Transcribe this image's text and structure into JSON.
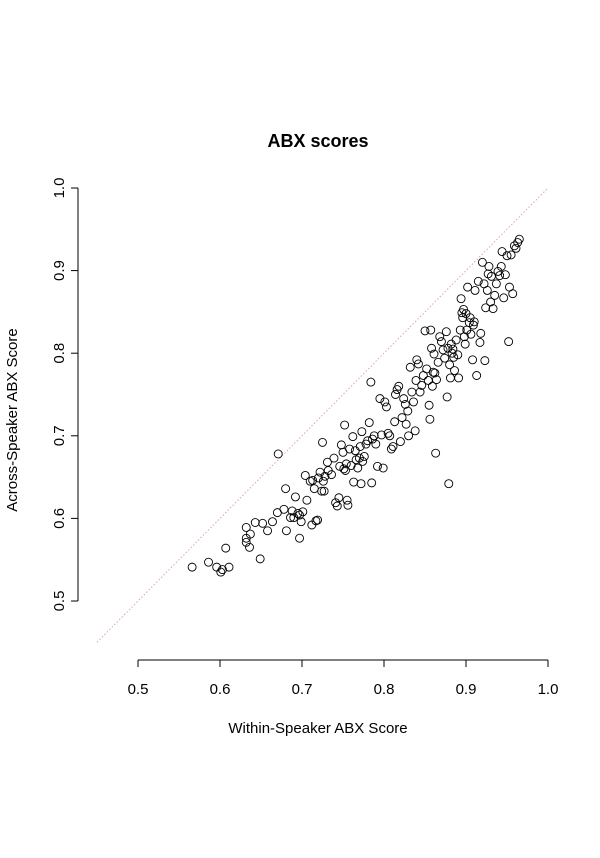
{
  "chart_data": {
    "type": "scatter",
    "title": "ABX scores",
    "xlabel": "Within-Speaker ABX Score",
    "ylabel": "Across-Speaker ABX Score",
    "xlim": [
      0.45,
      1.0
    ],
    "ylim": [
      0.45,
      1.0
    ],
    "x_ticks": [
      "0.5",
      "0.6",
      "0.7",
      "0.8",
      "0.9",
      "1.0"
    ],
    "y_ticks": [
      "0.5",
      "0.6",
      "0.7",
      "0.8",
      "0.9",
      "1.0"
    ],
    "reference_line": {
      "from": [
        0.45,
        0.45
      ],
      "to": [
        1.0,
        1.0
      ],
      "color": "#e8a0a8",
      "style": "dotted"
    },
    "marker_color": "#000000",
    "grid": false,
    "points": [
      [
        0.566,
        0.541
      ],
      [
        0.586,
        0.547
      ],
      [
        0.596,
        0.541
      ],
      [
        0.601,
        0.535
      ],
      [
        0.603,
        0.538
      ],
      [
        0.607,
        0.564
      ],
      [
        0.611,
        0.541
      ],
      [
        0.632,
        0.589
      ],
      [
        0.632,
        0.576
      ],
      [
        0.632,
        0.571
      ],
      [
        0.636,
        0.565
      ],
      [
        0.637,
        0.581
      ],
      [
        0.643,
        0.595
      ],
      [
        0.649,
        0.551
      ],
      [
        0.652,
        0.594
      ],
      [
        0.658,
        0.585
      ],
      [
        0.664,
        0.596
      ],
      [
        0.671,
        0.678
      ],
      [
        0.67,
        0.607
      ],
      [
        0.678,
        0.611
      ],
      [
        0.68,
        0.636
      ],
      [
        0.681,
        0.585
      ],
      [
        0.686,
        0.601
      ],
      [
        0.688,
        0.609
      ],
      [
        0.69,
        0.601
      ],
      [
        0.692,
        0.626
      ],
      [
        0.695,
        0.606
      ],
      [
        0.697,
        0.604
      ],
      [
        0.697,
        0.576
      ],
      [
        0.699,
        0.596
      ],
      [
        0.701,
        0.608
      ],
      [
        0.704,
        0.652
      ],
      [
        0.706,
        0.622
      ],
      [
        0.71,
        0.645
      ],
      [
        0.712,
        0.592
      ],
      [
        0.713,
        0.646
      ],
      [
        0.715,
        0.636
      ],
      [
        0.717,
        0.597
      ],
      [
        0.719,
        0.598
      ],
      [
        0.72,
        0.649
      ],
      [
        0.722,
        0.656
      ],
      [
        0.724,
        0.633
      ],
      [
        0.725,
        0.692
      ],
      [
        0.726,
        0.645
      ],
      [
        0.727,
        0.633
      ],
      [
        0.728,
        0.651
      ],
      [
        0.731,
        0.668
      ],
      [
        0.732,
        0.658
      ],
      [
        0.736,
        0.653
      ],
      [
        0.739,
        0.673
      ],
      [
        0.741,
        0.619
      ],
      [
        0.743,
        0.615
      ],
      [
        0.745,
        0.625
      ],
      [
        0.746,
        0.663
      ],
      [
        0.748,
        0.689
      ],
      [
        0.75,
        0.68
      ],
      [
        0.751,
        0.66
      ],
      [
        0.752,
        0.713
      ],
      [
        0.753,
        0.658
      ],
      [
        0.754,
        0.666
      ],
      [
        0.755,
        0.622
      ],
      [
        0.756,
        0.616
      ],
      [
        0.758,
        0.684
      ],
      [
        0.76,
        0.664
      ],
      [
        0.762,
        0.699
      ],
      [
        0.763,
        0.644
      ],
      [
        0.765,
        0.682
      ],
      [
        0.766,
        0.671
      ],
      [
        0.768,
        0.661
      ],
      [
        0.77,
        0.673
      ],
      [
        0.771,
        0.687
      ],
      [
        0.772,
        0.642
      ],
      [
        0.773,
        0.705
      ],
      [
        0.774,
        0.669
      ],
      [
        0.776,
        0.675
      ],
      [
        0.778,
        0.69
      ],
      [
        0.78,
        0.694
      ],
      [
        0.782,
        0.716
      ],
      [
        0.784,
        0.765
      ],
      [
        0.785,
        0.643
      ],
      [
        0.786,
        0.696
      ],
      [
        0.788,
        0.7
      ],
      [
        0.79,
        0.69
      ],
      [
        0.792,
        0.663
      ],
      [
        0.795,
        0.745
      ],
      [
        0.797,
        0.701
      ],
      [
        0.799,
        0.661
      ],
      [
        0.801,
        0.741
      ],
      [
        0.803,
        0.735
      ],
      [
        0.805,
        0.703
      ],
      [
        0.807,
        0.7
      ],
      [
        0.809,
        0.684
      ],
      [
        0.811,
        0.687
      ],
      [
        0.813,
        0.717
      ],
      [
        0.814,
        0.75
      ],
      [
        0.816,
        0.756
      ],
      [
        0.818,
        0.76
      ],
      [
        0.82,
        0.693
      ],
      [
        0.822,
        0.722
      ],
      [
        0.824,
        0.745
      ],
      [
        0.826,
        0.738
      ],
      [
        0.827,
        0.714
      ],
      [
        0.829,
        0.73
      ],
      [
        0.83,
        0.7
      ],
      [
        0.832,
        0.783
      ],
      [
        0.834,
        0.753
      ],
      [
        0.836,
        0.741
      ],
      [
        0.838,
        0.706
      ],
      [
        0.839,
        0.767
      ],
      [
        0.84,
        0.792
      ],
      [
        0.842,
        0.787
      ],
      [
        0.844,
        0.753
      ],
      [
        0.846,
        0.761
      ],
      [
        0.848,
        0.773
      ],
      [
        0.85,
        0.827
      ],
      [
        0.852,
        0.781
      ],
      [
        0.854,
        0.767
      ],
      [
        0.855,
        0.737
      ],
      [
        0.856,
        0.72
      ],
      [
        0.857,
        0.828
      ],
      [
        0.858,
        0.806
      ],
      [
        0.859,
        0.76
      ],
      [
        0.86,
        0.777
      ],
      [
        0.861,
        0.799
      ],
      [
        0.862,
        0.776
      ],
      [
        0.863,
        0.679
      ],
      [
        0.864,
        0.768
      ],
      [
        0.866,
        0.789
      ],
      [
        0.868,
        0.82
      ],
      [
        0.87,
        0.814
      ],
      [
        0.872,
        0.804
      ],
      [
        0.874,
        0.794
      ],
      [
        0.876,
        0.826
      ],
      [
        0.877,
        0.747
      ],
      [
        0.878,
        0.806
      ],
      [
        0.879,
        0.642
      ],
      [
        0.88,
        0.786
      ],
      [
        0.881,
        0.77
      ],
      [
        0.882,
        0.811
      ],
      [
        0.883,
        0.8
      ],
      [
        0.884,
        0.805
      ],
      [
        0.885,
        0.795
      ],
      [
        0.886,
        0.779
      ],
      [
        0.888,
        0.816
      ],
      [
        0.89,
        0.798
      ],
      [
        0.891,
        0.77
      ],
      [
        0.893,
        0.828
      ],
      [
        0.894,
        0.866
      ],
      [
        0.895,
        0.849
      ],
      [
        0.896,
        0.843
      ],
      [
        0.897,
        0.853
      ],
      [
        0.898,
        0.82
      ],
      [
        0.899,
        0.811
      ],
      [
        0.9,
        0.848
      ],
      [
        0.901,
        0.828
      ],
      [
        0.902,
        0.88
      ],
      [
        0.904,
        0.837
      ],
      [
        0.905,
        0.843
      ],
      [
        0.906,
        0.823
      ],
      [
        0.908,
        0.792
      ],
      [
        0.909,
        0.834
      ],
      [
        0.91,
        0.838
      ],
      [
        0.911,
        0.876
      ],
      [
        0.913,
        0.773
      ],
      [
        0.915,
        0.887
      ],
      [
        0.917,
        0.813
      ],
      [
        0.918,
        0.824
      ],
      [
        0.92,
        0.91
      ],
      [
        0.922,
        0.884
      ],
      [
        0.923,
        0.791
      ],
      [
        0.924,
        0.855
      ],
      [
        0.926,
        0.876
      ],
      [
        0.927,
        0.896
      ],
      [
        0.928,
        0.905
      ],
      [
        0.93,
        0.862
      ],
      [
        0.931,
        0.893
      ],
      [
        0.933,
        0.854
      ],
      [
        0.935,
        0.87
      ],
      [
        0.937,
        0.884
      ],
      [
        0.939,
        0.899
      ],
      [
        0.941,
        0.894
      ],
      [
        0.943,
        0.905
      ],
      [
        0.944,
        0.923
      ],
      [
        0.946,
        0.867
      ],
      [
        0.948,
        0.895
      ],
      [
        0.95,
        0.918
      ],
      [
        0.952,
        0.814
      ],
      [
        0.953,
        0.88
      ],
      [
        0.955,
        0.919
      ],
      [
        0.957,
        0.872
      ],
      [
        0.959,
        0.93
      ],
      [
        0.961,
        0.927
      ],
      [
        0.963,
        0.934
      ],
      [
        0.965,
        0.938
      ]
    ]
  }
}
